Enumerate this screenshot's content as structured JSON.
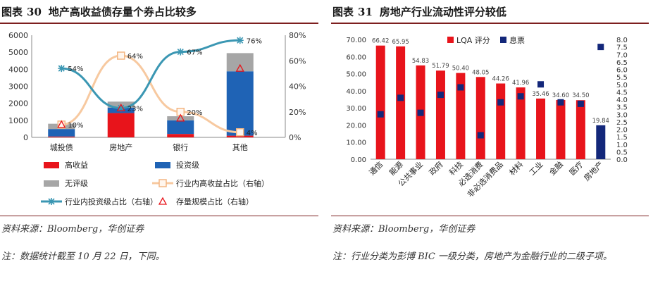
{
  "left": {
    "title_prefix": "图表",
    "title_num": "30",
    "title_text": "地产高收益债存量个券占比较多",
    "source": "资料来源：Bloomberg，华创证券",
    "note": "注：数据统计截至 10 月 22 日，下同。"
  },
  "right": {
    "title_prefix": "图表",
    "title_num": "31",
    "title_text": "房地产行业流动性评分较低",
    "source": "资料来源：Bloomberg，华创证券",
    "note": "注：行业分类为彭博 BIC 一级分类，房地产为金融行业的二级子项。"
  },
  "chart_data": [
    {
      "type": "bar",
      "stacked": true,
      "categories": [
        "城投债",
        "房地产",
        "银行",
        "其他"
      ],
      "series": [
        {
          "name": "高收益",
          "color": "#e8141b",
          "values": [
            50,
            1430,
            200,
            100
          ]
        },
        {
          "name": "投资级",
          "color": "#1f63b5",
          "values": [
            440,
            320,
            800,
            3780
          ]
        },
        {
          "name": "无评级",
          "color": "#a6a6a6",
          "values": [
            310,
            350,
            240,
            1070
          ]
        }
      ],
      "line_series": [
        {
          "name": "行业内高收益占比（右轴）",
          "color": "#f7c9a0",
          "values": [
            10,
            64,
            20,
            4
          ],
          "labels": [
            "10%",
            "64%",
            "20%",
            "4%"
          ]
        },
        {
          "name": "行业内投资级占比（右轴）",
          "color": "#3b97b3",
          "values": [
            54,
            23,
            67,
            76
          ],
          "labels": [
            "54%",
            "23%",
            "67%",
            "76%"
          ]
        },
        {
          "name": "存量规模占比（右轴）",
          "color": "#e8141b",
          "values": [
            10,
            23,
            15,
            54
          ]
        }
      ],
      "ylim": [
        0,
        6000
      ],
      "y_ticks": [
        "0",
        "1000",
        "2000",
        "3000",
        "4000",
        "5000",
        "6000"
      ],
      "y2lim": [
        0,
        80
      ],
      "y2_ticks": [
        "0%",
        "20%",
        "40%",
        "60%",
        "80%"
      ],
      "legend": [
        "高收益",
        "投资级",
        "无评级",
        "行业内高收益占比（右轴）",
        "行业内投资级占比（右轴）",
        "存量规模占比（右轴）"
      ]
    },
    {
      "type": "bar",
      "categories": [
        "通信",
        "能源",
        "公共事业",
        "政府",
        "科技",
        "必选消费",
        "非必选消费品",
        "材料",
        "工业",
        "金融",
        "医疗",
        "房地产"
      ],
      "series": [
        {
          "name": "LQA 评分",
          "color": "#e8141b",
          "values": [
            66.42,
            65.95,
            54.83,
            51.79,
            50.4,
            48.05,
            44.26,
            41.96,
            35.46,
            34.6,
            34.5,
            19.84
          ],
          "labels": [
            "66.42",
            "65.95",
            "54.83",
            "51.79",
            "50.40",
            "48.05",
            "44.26",
            "41.96",
            "35.46",
            "34.60",
            "34.50",
            "19.84"
          ]
        },
        {
          "name": "息票",
          "color": "#13277a",
          "axis": "right",
          "values": [
            3.0,
            4.1,
            3.1,
            4.3,
            4.8,
            1.6,
            3.8,
            4.2,
            5.0,
            3.8,
            3.7,
            7.5
          ]
        }
      ],
      "ylim": [
        0,
        70
      ],
      "y_ticks": [
        "0.00",
        "10.00",
        "20.00",
        "30.00",
        "40.00",
        "50.00",
        "60.00",
        "70.00"
      ],
      "y2lim": [
        0,
        8
      ],
      "y2_ticks": [
        "0.0",
        "0.5",
        "1.0",
        "1.5",
        "2.0",
        "2.5",
        "3.0",
        "3.5",
        "4.0",
        "4.5",
        "5.0",
        "5.5",
        "6.0",
        "6.5",
        "7.0",
        "7.5",
        "8.0"
      ],
      "legend": [
        "LQA 评分",
        "息票"
      ]
    }
  ]
}
